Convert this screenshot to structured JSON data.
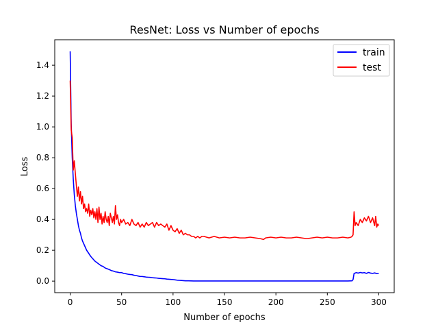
{
  "chart_data": {
    "type": "line",
    "title": "ResNet: Loss vs Number of epochs",
    "xlabel": "Number of epochs",
    "ylabel": "Loss",
    "xlim": [
      -15,
      315
    ],
    "ylim": [
      -0.075,
      1.565
    ],
    "x_ticks": [
      0,
      50,
      100,
      150,
      200,
      250,
      300
    ],
    "x_tick_labels": [
      "0",
      "50",
      "100",
      "150",
      "200",
      "250",
      "300"
    ],
    "y_ticks": [
      0.0,
      0.2,
      0.4,
      0.6,
      0.8,
      1.0,
      1.2,
      1.4
    ],
    "y_tick_labels": [
      "0.0",
      "0.2",
      "0.4",
      "0.6",
      "0.8",
      "1.0",
      "1.2",
      "1.4"
    ],
    "grid": false,
    "legend_position": "top-right",
    "series": [
      {
        "name": "train",
        "color": "#0000ff",
        "x": [
          0,
          1,
          2,
          3,
          4,
          5,
          6,
          7,
          8,
          9,
          10,
          11,
          12,
          13,
          14,
          15,
          16,
          17,
          18,
          19,
          20,
          22,
          24,
          26,
          28,
          30,
          32,
          34,
          36,
          38,
          40,
          42,
          44,
          46,
          48,
          50,
          52,
          54,
          56,
          58,
          60,
          62,
          64,
          66,
          68,
          70,
          72,
          74,
          76,
          78,
          80,
          82,
          84,
          86,
          88,
          90,
          92,
          94,
          96,
          98,
          100,
          102,
          104,
          106,
          108,
          110,
          112,
          115,
          120,
          130,
          140,
          150,
          160,
          170,
          180,
          190,
          200,
          210,
          220,
          230,
          240,
          250,
          260,
          270,
          274,
          275,
          276,
          277,
          278,
          280,
          282,
          284,
          286,
          288,
          290,
          292,
          294,
          296,
          298,
          300
        ],
        "y": [
          1.49,
          1.02,
          0.8,
          0.66,
          0.56,
          0.49,
          0.44,
          0.4,
          0.36,
          0.33,
          0.31,
          0.28,
          0.26,
          0.245,
          0.23,
          0.215,
          0.2,
          0.19,
          0.18,
          0.17,
          0.16,
          0.145,
          0.13,
          0.12,
          0.11,
          0.1,
          0.095,
          0.085,
          0.08,
          0.075,
          0.068,
          0.065,
          0.06,
          0.058,
          0.055,
          0.055,
          0.05,
          0.048,
          0.045,
          0.043,
          0.042,
          0.038,
          0.036,
          0.033,
          0.03,
          0.03,
          0.028,
          0.026,
          0.025,
          0.024,
          0.022,
          0.021,
          0.02,
          0.018,
          0.017,
          0.016,
          0.015,
          0.013,
          0.012,
          0.011,
          0.01,
          0.008,
          0.006,
          0.005,
          0.004,
          0.003,
          0.002,
          0.002,
          0.001,
          0.001,
          0.001,
          0.001,
          0.001,
          0.001,
          0.001,
          0.001,
          0.001,
          0.001,
          0.001,
          0.001,
          0.001,
          0.001,
          0.001,
          0.001,
          0.002,
          0.01,
          0.05,
          0.052,
          0.055,
          0.052,
          0.056,
          0.053,
          0.055,
          0.05,
          0.056,
          0.052,
          0.05,
          0.053,
          0.049,
          0.05
        ]
      },
      {
        "name": "test",
        "color": "#ff0000",
        "x": [
          0,
          1,
          2,
          3,
          4,
          5,
          6,
          7,
          8,
          9,
          10,
          11,
          12,
          13,
          14,
          15,
          16,
          17,
          18,
          19,
          20,
          21,
          22,
          23,
          24,
          25,
          26,
          27,
          28,
          29,
          30,
          31,
          32,
          33,
          34,
          35,
          36,
          37,
          38,
          39,
          40,
          41,
          42,
          43,
          44,
          45,
          46,
          47,
          48,
          49,
          50,
          52,
          54,
          56,
          58,
          60,
          62,
          64,
          66,
          68,
          70,
          72,
          74,
          76,
          78,
          80,
          82,
          84,
          86,
          88,
          90,
          92,
          94,
          96,
          98,
          100,
          102,
          104,
          106,
          108,
          110,
          112,
          114,
          116,
          118,
          120,
          122,
          124,
          126,
          128,
          130,
          135,
          140,
          145,
          150,
          155,
          160,
          165,
          170,
          175,
          180,
          185,
          188,
          190,
          195,
          200,
          205,
          210,
          215,
          220,
          225,
          230,
          235,
          240,
          245,
          250,
          255,
          260,
          265,
          270,
          273,
          274,
          275,
          276,
          277,
          278,
          280,
          282,
          284,
          286,
          288,
          290,
          292,
          294,
          296,
          297,
          298,
          299,
          300
        ],
        "y": [
          1.3,
          0.98,
          0.93,
          0.72,
          0.78,
          0.7,
          0.62,
          0.55,
          0.61,
          0.52,
          0.58,
          0.5,
          0.55,
          0.47,
          0.5,
          0.45,
          0.47,
          0.44,
          0.5,
          0.42,
          0.46,
          0.43,
          0.47,
          0.41,
          0.45,
          0.4,
          0.47,
          0.38,
          0.48,
          0.4,
          0.44,
          0.37,
          0.42,
          0.38,
          0.45,
          0.4,
          0.38,
          0.42,
          0.36,
          0.44,
          0.41,
          0.38,
          0.42,
          0.37,
          0.49,
          0.4,
          0.43,
          0.38,
          0.36,
          0.4,
          0.38,
          0.4,
          0.37,
          0.38,
          0.36,
          0.4,
          0.37,
          0.36,
          0.38,
          0.35,
          0.37,
          0.35,
          0.38,
          0.36,
          0.37,
          0.38,
          0.35,
          0.38,
          0.36,
          0.37,
          0.36,
          0.35,
          0.37,
          0.33,
          0.36,
          0.33,
          0.32,
          0.34,
          0.31,
          0.33,
          0.3,
          0.31,
          0.3,
          0.3,
          0.29,
          0.29,
          0.28,
          0.29,
          0.28,
          0.29,
          0.29,
          0.28,
          0.29,
          0.28,
          0.285,
          0.28,
          0.285,
          0.28,
          0.28,
          0.285,
          0.28,
          0.275,
          0.27,
          0.28,
          0.285,
          0.28,
          0.285,
          0.28,
          0.28,
          0.285,
          0.28,
          0.275,
          0.28,
          0.285,
          0.28,
          0.285,
          0.28,
          0.28,
          0.285,
          0.28,
          0.285,
          0.29,
          0.3,
          0.45,
          0.36,
          0.38,
          0.36,
          0.4,
          0.38,
          0.41,
          0.39,
          0.42,
          0.38,
          0.41,
          0.36,
          0.42,
          0.35,
          0.37,
          0.36
        ]
      }
    ]
  }
}
